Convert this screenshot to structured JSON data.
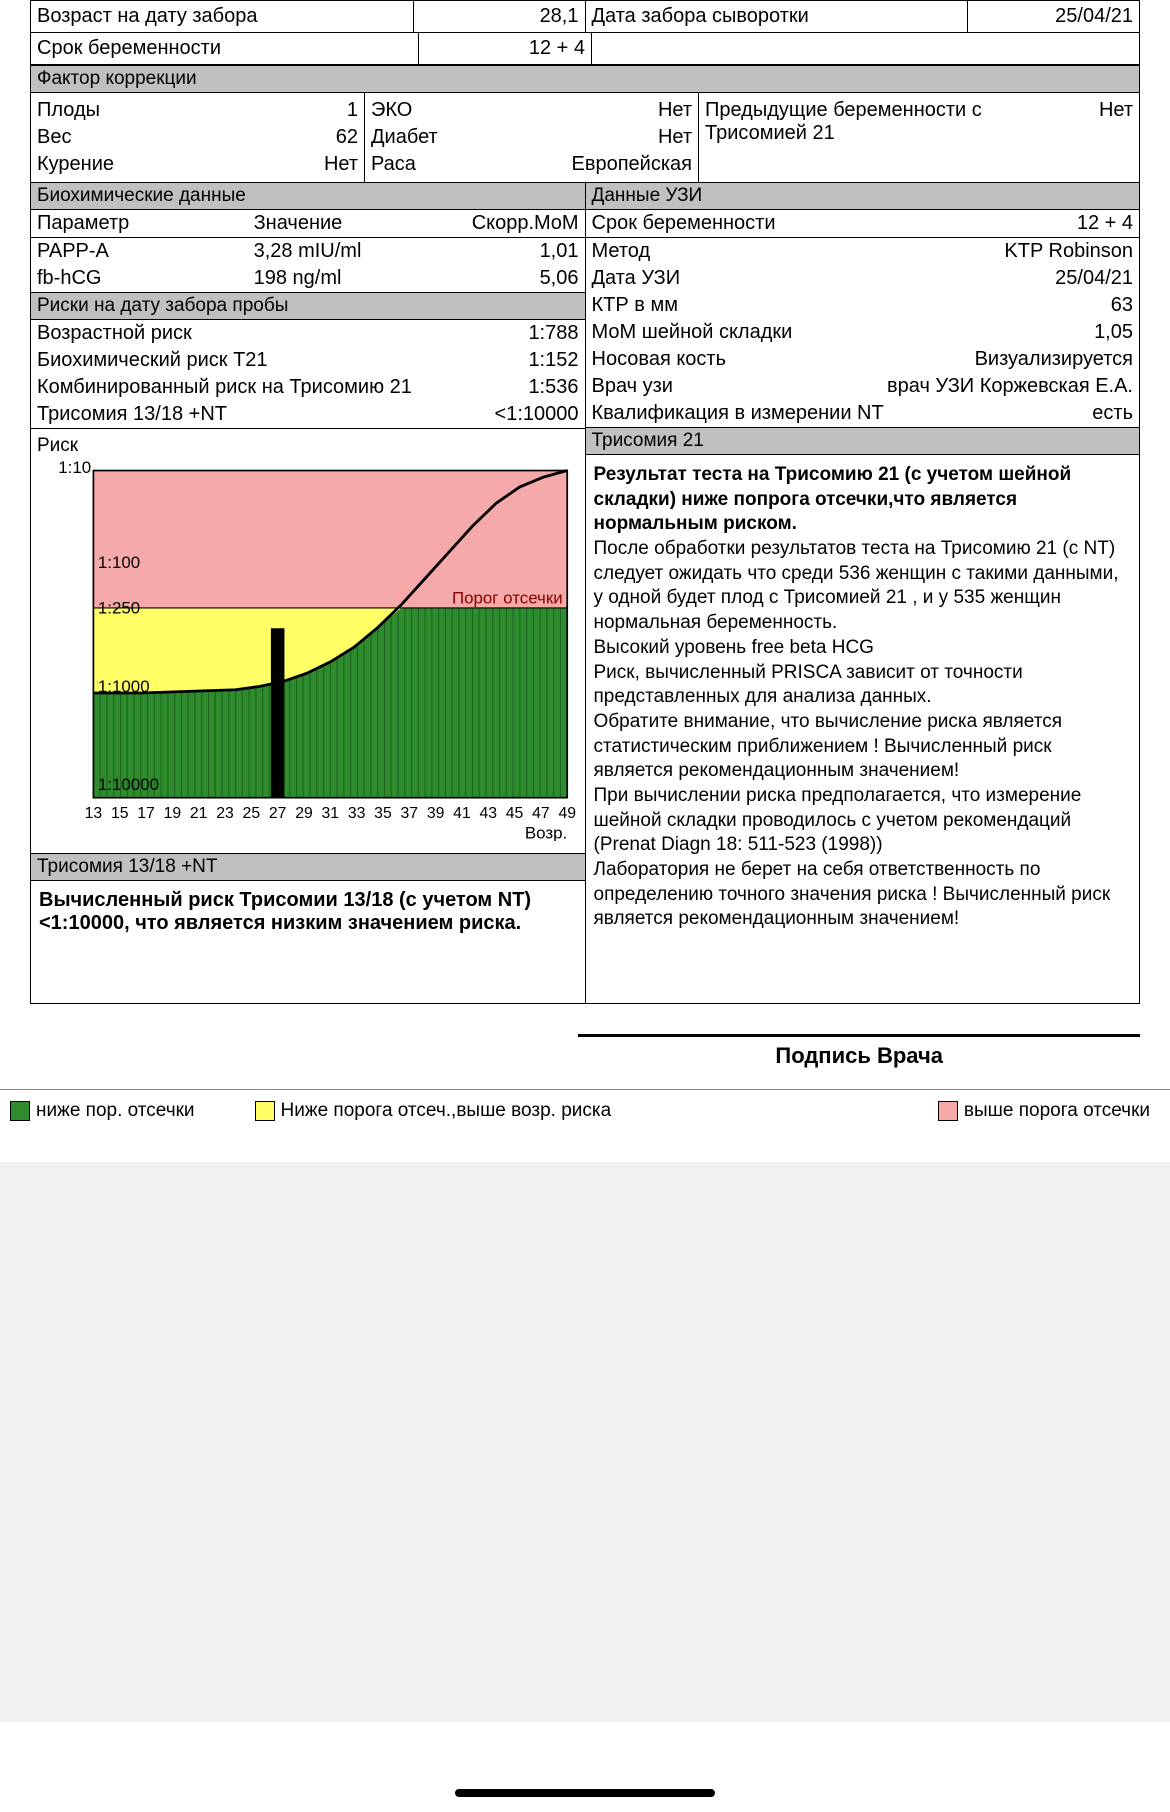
{
  "top": {
    "age_label": "Возраст на дату забора",
    "age_value": "28,1",
    "serum_date_label": "Дата забора сыворотки",
    "serum_date_value": "25/04/21",
    "gest_label": "Срок беременности",
    "gest_value": "12 + 4"
  },
  "correction": {
    "header": "Фактор коррекции",
    "col1": {
      "fetuses_label": "Плоды",
      "fetuses_value": "1",
      "weight_label": "Вес",
      "weight_value": "62",
      "smoking_label": "Курение",
      "smoking_value": "Нет"
    },
    "col2": {
      "eko_label": "ЭКО",
      "eko_value": "Нет",
      "diabetes_label": "Диабет",
      "diabetes_value": "Нет",
      "race_label": "Раса",
      "race_value": "Европейская"
    },
    "col3": {
      "prev_label": "Предыдущие беременности с Трисомией 21",
      "prev_value": "Нет"
    }
  },
  "biochem": {
    "header": "Биохимические данные",
    "param_h": "Параметр",
    "value_h": "Значение",
    "mom_h": "Скорр.MoM",
    "rows": [
      {
        "param": "PAPP-A",
        "value": "3,28 mIU/ml",
        "mom": "1,01"
      },
      {
        "param": "fb-hCG",
        "value": "198 ng/ml",
        "mom": "5,06"
      }
    ]
  },
  "uzi": {
    "header": "Данные УЗИ",
    "rows": [
      {
        "label": "Срок беременности",
        "value": "12 + 4"
      },
      {
        "label": "Метод",
        "value": "KTP Robinson"
      },
      {
        "label": "Дата УЗИ",
        "value": "25/04/21"
      },
      {
        "label": "КТР в мм",
        "value": "63"
      },
      {
        "label": "МоМ шейной складки",
        "value": "1,05"
      },
      {
        "label": "Носовая кость",
        "value": "Визуализируется"
      },
      {
        "label": "Врач узи",
        "value": "врач УЗИ Коржевская Е.А."
      },
      {
        "label": "Квалификация в измерении NT",
        "value": "есть"
      }
    ]
  },
  "risks": {
    "header": "Риски на дату забора пробы",
    "rows": [
      {
        "label": "Возрастной риск",
        "value": "1:788"
      },
      {
        "label": "Биохимический риск T21",
        "value": "1:152"
      },
      {
        "label": "Комбинированный риск на Трисомию 21",
        "value": "1:536"
      },
      {
        "label": "Трисомия 13/18 +NT",
        "value": "<1:10000"
      }
    ]
  },
  "chart": {
    "title": "Риск",
    "y_top_label": "1:10",
    "y_labels": [
      "1:100",
      "1:250",
      "1:1000",
      "1:10000"
    ],
    "cutoff_label": "Порог отсечки",
    "x_labels": [
      "13",
      "15",
      "17",
      "19",
      "21",
      "23",
      "25",
      "27",
      "29",
      "31",
      "33",
      "35",
      "37",
      "39",
      "41",
      "43",
      "45",
      "47",
      "49"
    ],
    "x_axis_label": "Возр.",
    "colors": {
      "above": "#f5a9a9",
      "mid": "#ffff66",
      "below": "#2e8b2e",
      "curve": "#000000",
      "marker": "#000000",
      "border": "#000000"
    },
    "marker_age_index": 7,
    "curve_points": [
      [
        0,
        0.68
      ],
      [
        0.1,
        0.68
      ],
      [
        0.2,
        0.675
      ],
      [
        0.3,
        0.67
      ],
      [
        0.35,
        0.66
      ],
      [
        0.4,
        0.645
      ],
      [
        0.45,
        0.62
      ],
      [
        0.5,
        0.585
      ],
      [
        0.55,
        0.54
      ],
      [
        0.6,
        0.48
      ],
      [
        0.65,
        0.41
      ],
      [
        0.7,
        0.33
      ],
      [
        0.75,
        0.25
      ],
      [
        0.8,
        0.17
      ],
      [
        0.85,
        0.1
      ],
      [
        0.9,
        0.05
      ],
      [
        0.95,
        0.02
      ],
      [
        1.0,
        0.0
      ]
    ],
    "cutoff_y": 0.42,
    "yellow_bottom_y": 0.7
  },
  "trisomy13_section": {
    "header": "Трисомия 13/18 +NT",
    "text": "Вычисленный риск Трисомии 13/18 (с учетом NT) <1:10000, что является низким значением риска."
  },
  "trisomy21_section": {
    "header": "Трисомия 21",
    "bold_text": "Результат теста на Трисомию 21 (с учетом шейной складки) ниже попрога отсечки,что является нормальным риском.",
    "body_text": "После обработки результатов теста на Трисомию 21 (с NT) следует ожидать что среди 536 женщин с такими данными, у одной будет плод с Трисомией 21 , и у 535 женщин нормальная беременность.\nВысокий уровень free beta HCG\nРиск, вычисленный PRISCA зависит от точности представленных для анализа данных.\nОбратите внимание, что вычисление риска является статистическим приближением ! Вычисленный риск является рекомендационным значением!\nПри вычислении риска предполагается, что измерение шейной складки проводилось с учетом рекомендаций (Prenat Diagn 18: 511-523 (1998))\nЛаборатория не берет на себя ответственность по определению точного значения риска ! Вычисленный риск является рекомендационным значением!"
  },
  "signature": "Подпись Врача",
  "legend": {
    "below": "ниже пор. отсечки",
    "mid": "Ниже порога отсеч.,выше возр. риска",
    "above": "выше порога отсечки",
    "colors": {
      "below": "#2e8b2e",
      "mid": "#ffff66",
      "above": "#f5a9a9"
    }
  }
}
